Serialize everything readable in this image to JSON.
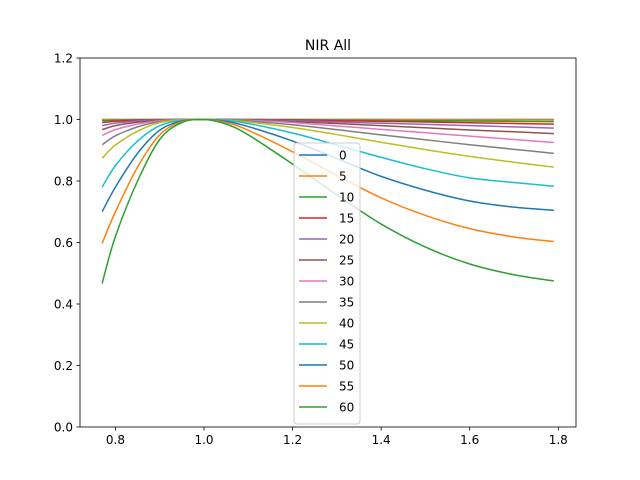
{
  "chart_data": {
    "type": "line",
    "title": "NIR All",
    "xlabel": "",
    "ylabel": "",
    "xlim": [
      0.72,
      1.84
    ],
    "ylim": [
      0.0,
      1.2
    ],
    "xticks": [
      0.8,
      1.0,
      1.2,
      1.4,
      1.6,
      1.8
    ],
    "xtick_labels": [
      "0.8",
      "1.0",
      "1.2",
      "1.4",
      "1.6",
      "1.8"
    ],
    "yticks": [
      0.0,
      0.2,
      0.4,
      0.6,
      0.8,
      1.0,
      1.2
    ],
    "ytick_labels": [
      "0.0",
      "0.2",
      "0.4",
      "0.6",
      "0.8",
      "1.0",
      "1.2"
    ],
    "grid": false,
    "legend": "center",
    "x": [
      0.77,
      0.8,
      0.85,
      0.9,
      0.95,
      1.0,
      1.05,
      1.1,
      1.2,
      1.3,
      1.4,
      1.5,
      1.6,
      1.7,
      1.79
    ],
    "series": [
      {
        "name": "0",
        "color": "#1f77b4",
        "values": [
          1.0,
          1.0,
          1.0,
          1.0,
          1.0,
          1.0,
          1.0,
          1.0,
          1.0,
          1.0,
          1.0,
          1.0,
          1.0,
          1.0,
          1.0
        ]
      },
      {
        "name": "5",
        "color": "#ff7f0e",
        "values": [
          0.999,
          0.9993,
          0.9997,
          0.9999,
          1.0,
          1.0,
          1.0,
          0.9999,
          0.9997,
          0.9995,
          0.9993,
          0.9991,
          0.9989,
          0.9987,
          0.9985
        ]
      },
      {
        "name": "10",
        "color": "#2ca02c",
        "values": [
          0.996,
          0.9974,
          0.9988,
          0.9996,
          0.9999,
          1.0,
          0.9999,
          0.9997,
          0.999,
          0.998,
          0.997,
          0.996,
          0.995,
          0.994,
          0.993
        ]
      },
      {
        "name": "15",
        "color": "#d62728",
        "values": [
          0.99,
          0.994,
          0.9975,
          0.9992,
          0.9999,
          1.0,
          0.9998,
          0.9993,
          0.998,
          0.996,
          0.994,
          0.992,
          0.9895,
          0.987,
          0.985
        ]
      },
      {
        "name": "20",
        "color": "#9467bd",
        "values": [
          0.98,
          0.988,
          0.995,
          0.9985,
          0.9998,
          1.0,
          0.9997,
          0.9988,
          0.996,
          0.992,
          0.988,
          0.984,
          0.98,
          0.976,
          0.972
        ]
      },
      {
        "name": "25",
        "color": "#8c564b",
        "values": [
          0.967,
          0.98,
          0.991,
          0.9975,
          0.9996,
          1.0,
          0.9995,
          0.998,
          0.993,
          0.987,
          0.98,
          0.973,
          0.966,
          0.96,
          0.954
        ]
      },
      {
        "name": "30",
        "color": "#e377c2",
        "values": [
          0.948,
          0.967,
          0.985,
          0.996,
          0.9994,
          1.0,
          0.9992,
          0.997,
          0.99,
          0.979,
          0.968,
          0.957,
          0.946,
          0.935,
          0.925
        ]
      },
      {
        "name": "35",
        "color": "#7f7f7f",
        "values": [
          0.918,
          0.947,
          0.976,
          0.993,
          0.999,
          1.0,
          0.999,
          0.995,
          0.983,
          0.967,
          0.95,
          0.934,
          0.918,
          0.903,
          0.89
        ]
      },
      {
        "name": "40",
        "color": "#bcbd22",
        "values": [
          0.874,
          0.917,
          0.962,
          0.99,
          0.9985,
          1.0,
          0.998,
          0.992,
          0.974,
          0.951,
          0.926,
          0.902,
          0.88,
          0.861,
          0.845
        ]
      },
      {
        "name": "45",
        "color": "#17becf",
        "values": [
          0.78,
          0.85,
          0.93,
          0.98,
          0.997,
          1.0,
          0.997,
          0.987,
          0.956,
          0.917,
          0.877,
          0.84,
          0.81,
          0.795,
          0.783
        ]
      },
      {
        "name": "50",
        "color": "#1f77b4",
        "values": [
          0.7,
          0.78,
          0.89,
          0.965,
          0.995,
          1.0,
          0.994,
          0.977,
          0.93,
          0.873,
          0.815,
          0.77,
          0.735,
          0.715,
          0.705
        ]
      },
      {
        "name": "55",
        "color": "#ff7f0e",
        "values": [
          0.597,
          0.7,
          0.845,
          0.95,
          0.993,
          1.0,
          0.99,
          0.965,
          0.895,
          0.818,
          0.745,
          0.688,
          0.645,
          0.618,
          0.603
        ]
      },
      {
        "name": "60",
        "color": "#2ca02c",
        "values": [
          0.467,
          0.62,
          0.8,
          0.935,
          0.99,
          1.0,
          0.985,
          0.95,
          0.855,
          0.755,
          0.66,
          0.585,
          0.53,
          0.495,
          0.475
        ]
      }
    ]
  }
}
